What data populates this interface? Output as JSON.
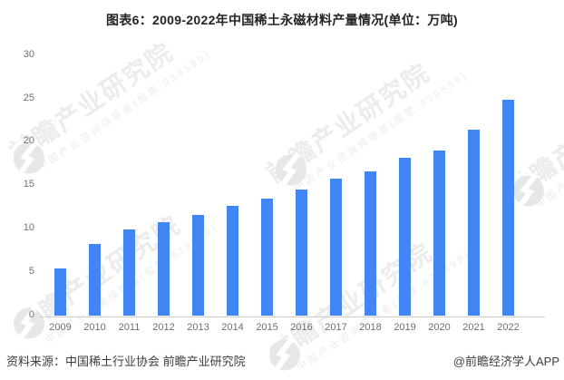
{
  "title": "图表6：2009-2022年中国稀土永磁材料产量情况(单位：万吨)",
  "chart_data": {
    "type": "bar",
    "title": "图表6：2009-2022年中国稀土永磁材料产量情况",
    "unit": "万吨",
    "categories": [
      "2009",
      "2010",
      "2011",
      "2012",
      "2013",
      "2014",
      "2015",
      "2016",
      "2017",
      "2018",
      "2019",
      "2020",
      "2021",
      "2022"
    ],
    "values": [
      5.5,
      8.3,
      10.0,
      10.8,
      11.7,
      12.7,
      13.5,
      14.6,
      15.8,
      16.7,
      18.3,
      19.1,
      21.5,
      24.9
    ],
    "xlabel": "",
    "ylabel": "",
    "ylim": [
      0,
      30
    ],
    "yticks": [
      0,
      5,
      10,
      15,
      20,
      25,
      30
    ],
    "grid": false,
    "legend": "none",
    "bar_color": "#4285f4"
  },
  "watermark": {
    "main": "前瞻产业研究院",
    "sub": "中国产业咨询领导者(股票:839599)",
    "text_color": "#ececec",
    "logo_color": "#e7e7e7"
  },
  "footer": {
    "source": "资料来源：中国稀土行业协会 前瞻产业研究院",
    "credit": "@前瞻经济学人APP"
  },
  "colors": {
    "accent_blue": "#4285f4",
    "axis_line": "#cccccc",
    "tick_text": "#6f6f6f",
    "title_text": "#242424",
    "footer_text": "#3d3d3d",
    "background": "#ffffff"
  }
}
